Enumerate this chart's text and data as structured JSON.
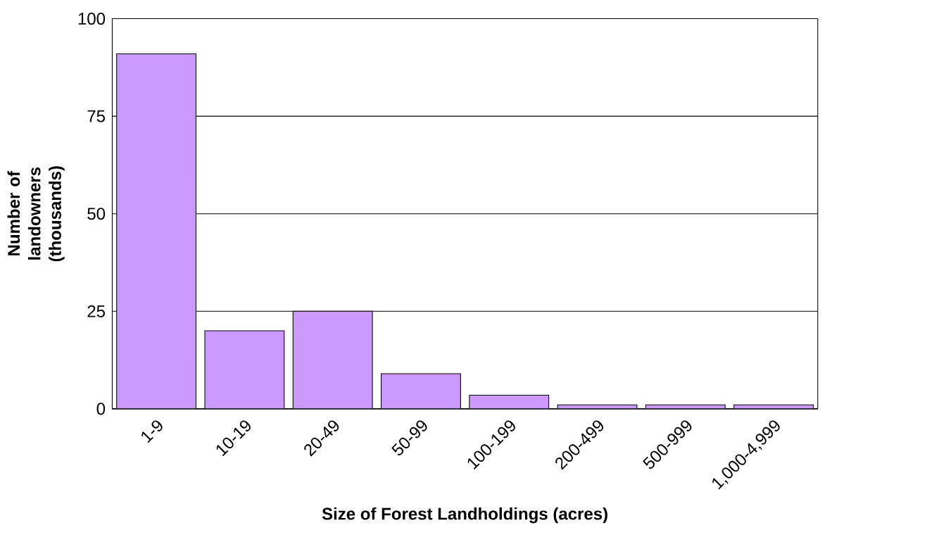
{
  "chart_data": {
    "type": "bar",
    "xlabel": "Size of Forest Landholdings (acres)",
    "ylabel": "Number of landowners (thousands)",
    "categories": [
      "1-9",
      "10-19",
      "20-49",
      "50-99",
      "100-199",
      "200-499",
      "500-999",
      "1,000-4,999"
    ],
    "values": [
      91,
      20,
      25,
      9,
      3.5,
      1,
      1,
      1
    ],
    "color": "#cc99ff",
    "ylim": [
      0,
      100
    ],
    "yticks": [
      0,
      25,
      50,
      75,
      100
    ],
    "grid": "y"
  }
}
